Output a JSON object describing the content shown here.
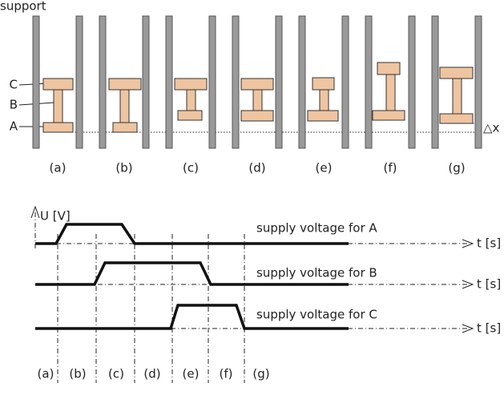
{
  "support_label": "support",
  "part_labels": [
    "C",
    "B",
    "A"
  ],
  "offset_label": "△x",
  "stage_labels": [
    "(a)",
    "(b)",
    "(c)",
    "(d)",
    "(e)",
    "(f)",
    "(g)"
  ],
  "y_axis_label": "U [V]",
  "signals": [
    {
      "label": "supply voltage for A",
      "axis_label": "t [s]"
    },
    {
      "label": "supply voltage for B",
      "axis_label": "t [s]"
    },
    {
      "label": "supply voltage for C",
      "axis_label": "t [s]"
    }
  ],
  "time_labels": [
    "(a)",
    "(b)",
    "(c)",
    "(d)",
    "(e)",
    "(f)",
    "(g)"
  ]
}
